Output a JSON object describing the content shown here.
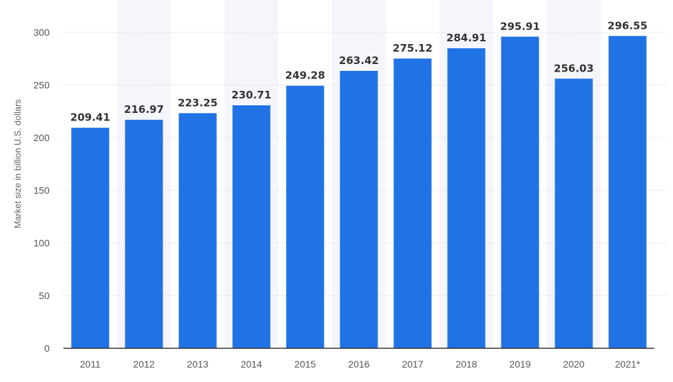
{
  "chart_data": {
    "type": "bar",
    "title": "",
    "xlabel": "",
    "ylabel": "Market size in billion U.S. dollars",
    "categories": [
      "2011",
      "2012",
      "2013",
      "2014",
      "2015",
      "2016",
      "2017",
      "2018",
      "2019",
      "2020",
      "2021*"
    ],
    "values": [
      209.41,
      216.97,
      223.25,
      230.71,
      249.28,
      263.42,
      275.12,
      284.91,
      295.91,
      256.03,
      296.55
    ],
    "value_labels": [
      "209.41",
      "216.97",
      "223.25",
      "230.71",
      "249.28",
      "263.42",
      "275.12",
      "284.91",
      "295.91",
      "256.03",
      "296.55"
    ],
    "ylim": [
      0,
      300
    ],
    "yticks": [
      0,
      50,
      100,
      150,
      200,
      250,
      300
    ],
    "ytick_labels": [
      "0",
      "50",
      "100",
      "150",
      "200",
      "250",
      "300"
    ],
    "grid": true,
    "legend": "none",
    "colors": {
      "bar": "#2172e5",
      "band": "#f5f6fb",
      "grid": "#cfcfcf",
      "axis": "#333333"
    }
  }
}
